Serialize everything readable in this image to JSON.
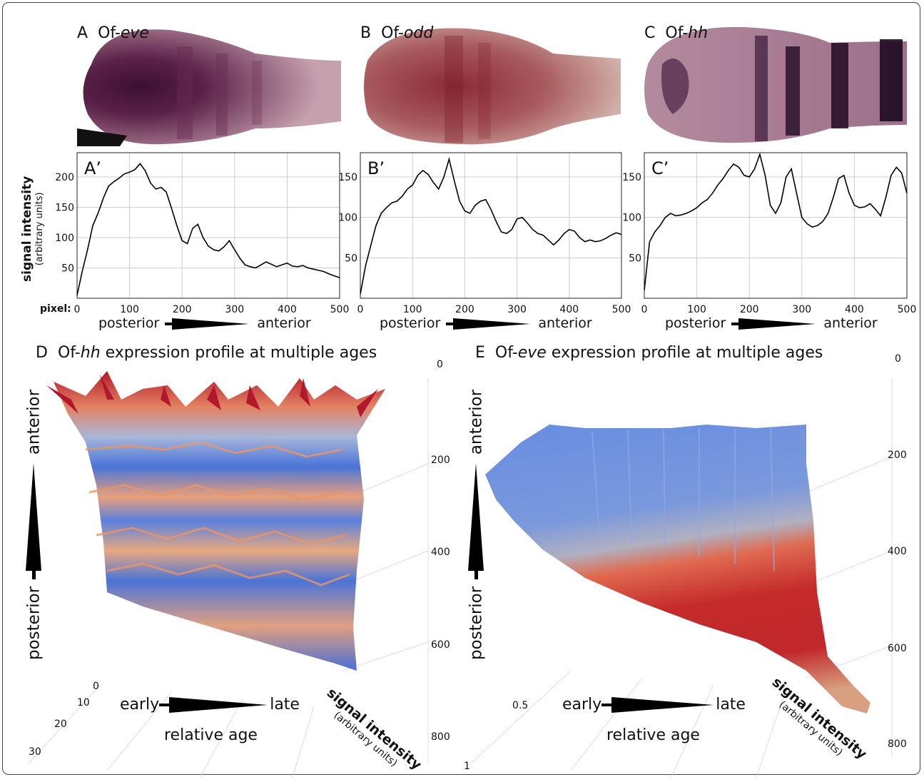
{
  "panel_A": {
    "letter": "A",
    "gene_prefix": "Of-",
    "gene": "eve"
  },
  "panel_B": {
    "letter": "B",
    "gene_prefix": "Of-",
    "gene": "odd"
  },
  "panel_C": {
    "letter": "C",
    "gene_prefix": "Of-",
    "gene": "hh"
  },
  "y_axis": {
    "label": "signal intensity",
    "unit": "(arbitrary units)"
  },
  "pixel_label": "pixel:",
  "direction": {
    "left": "posterior",
    "right": "anterior"
  },
  "panel_D": {
    "letter": "D",
    "title_prefix": "Of-",
    "title_gene": "hh",
    "title_suffix": " expression profile at multiple ages",
    "axis_vertical_low": "posterior",
    "axis_vertical_high": "anterior",
    "axis_age_left": "early",
    "axis_age_right": "late",
    "axis_age_label": "relative age",
    "axis_signal": "signal intensity",
    "axis_signal_unit": "(arbitrary units)",
    "right_ticks": [
      "0",
      "200",
      "400",
      "600",
      "800"
    ],
    "age_ticks": [
      "0",
      "10",
      "20",
      "30"
    ]
  },
  "panel_E": {
    "letter": "E",
    "title_prefix": "Of-",
    "title_gene": "eve",
    "title_suffix": " expression profile at multiple ages",
    "axis_vertical_low": "posterior",
    "axis_vertical_high": "anterior",
    "axis_age_left": "early",
    "axis_age_right": "late",
    "axis_age_label": "relative age",
    "axis_signal": "signal intensity",
    "axis_signal_unit": "(arbitrary units)",
    "right_ticks": [
      "0",
      "200",
      "400",
      "600",
      "800"
    ],
    "age_ticks": [
      "0.5",
      "1"
    ]
  },
  "colors": {
    "stain_purple": "#5a2248",
    "stain_red": "#8a2a3a",
    "surface_high": "#b2182b",
    "surface_mid": "#f4a582",
    "surface_low": "#4a74d8"
  },
  "chart_data": [
    {
      "type": "line",
      "panel": "A'",
      "label": "A’",
      "x": [
        0,
        10,
        20,
        30,
        40,
        50,
        60,
        70,
        80,
        90,
        100,
        110,
        120,
        130,
        140,
        150,
        160,
        170,
        180,
        190,
        200,
        210,
        220,
        230,
        240,
        250,
        260,
        270,
        280,
        290,
        300,
        310,
        320,
        330,
        340,
        350,
        360,
        370,
        380,
        390,
        400,
        410,
        420,
        430,
        440,
        450,
        460,
        470,
        480,
        490,
        500
      ],
      "y": [
        5,
        45,
        80,
        120,
        140,
        165,
        185,
        192,
        198,
        205,
        208,
        212,
        222,
        210,
        190,
        180,
        183,
        175,
        148,
        120,
        95,
        90,
        115,
        122,
        100,
        86,
        80,
        78,
        85,
        95,
        80,
        66,
        55,
        52,
        50,
        55,
        60,
        56,
        52,
        55,
        58,
        53,
        52,
        54,
        50,
        48,
        46,
        44,
        40,
        37,
        34
      ],
      "xlim": [
        0,
        500
      ],
      "ylim": [
        0,
        240
      ],
      "yticks": [
        50,
        100,
        150,
        200
      ],
      "xticks": [
        0,
        100,
        200,
        300,
        400,
        500
      ]
    },
    {
      "type": "line",
      "panel": "B'",
      "label": "B’",
      "x": [
        0,
        10,
        20,
        30,
        40,
        50,
        60,
        70,
        80,
        90,
        100,
        110,
        120,
        130,
        140,
        150,
        160,
        170,
        180,
        190,
        200,
        210,
        220,
        230,
        240,
        250,
        260,
        270,
        280,
        290,
        300,
        310,
        320,
        330,
        340,
        350,
        360,
        370,
        380,
        390,
        400,
        410,
        420,
        430,
        440,
        450,
        460,
        470,
        480,
        490,
        500
      ],
      "y": [
        5,
        40,
        65,
        90,
        105,
        112,
        118,
        120,
        126,
        135,
        140,
        152,
        158,
        153,
        143,
        135,
        150,
        172,
        145,
        120,
        108,
        105,
        115,
        120,
        122,
        110,
        95,
        82,
        80,
        85,
        98,
        100,
        93,
        85,
        80,
        78,
        72,
        66,
        72,
        80,
        85,
        83,
        75,
        70,
        72,
        70,
        71,
        74,
        78,
        81,
        79
      ],
      "xlim": [
        0,
        500
      ],
      "ylim": [
        0,
        180
      ],
      "yticks": [
        50,
        100,
        150
      ],
      "xticks": [
        0,
        100,
        200,
        300,
        400,
        500
      ]
    },
    {
      "type": "line",
      "panel": "C'",
      "label": "C’",
      "x": [
        0,
        10,
        20,
        30,
        40,
        50,
        60,
        70,
        80,
        90,
        100,
        110,
        120,
        130,
        140,
        150,
        160,
        170,
        180,
        190,
        200,
        210,
        220,
        230,
        240,
        250,
        260,
        270,
        280,
        290,
        300,
        310,
        320,
        330,
        340,
        350,
        360,
        370,
        380,
        390,
        400,
        410,
        420,
        430,
        440,
        450,
        460,
        470,
        480,
        490,
        500
      ],
      "y": [
        10,
        70,
        82,
        90,
        100,
        105,
        102,
        103,
        105,
        108,
        112,
        118,
        122,
        130,
        140,
        148,
        158,
        166,
        162,
        152,
        150,
        160,
        178,
        152,
        115,
        105,
        118,
        150,
        160,
        130,
        100,
        92,
        88,
        90,
        95,
        105,
        125,
        148,
        152,
        130,
        115,
        112,
        113,
        117,
        110,
        102,
        125,
        152,
        162,
        155,
        130
      ],
      "xlim": [
        0,
        500
      ],
      "ylim": [
        0,
        180
      ],
      "yticks": [
        50,
        100,
        150
      ],
      "xticks": [
        0,
        100,
        200,
        300,
        400,
        500
      ]
    }
  ]
}
